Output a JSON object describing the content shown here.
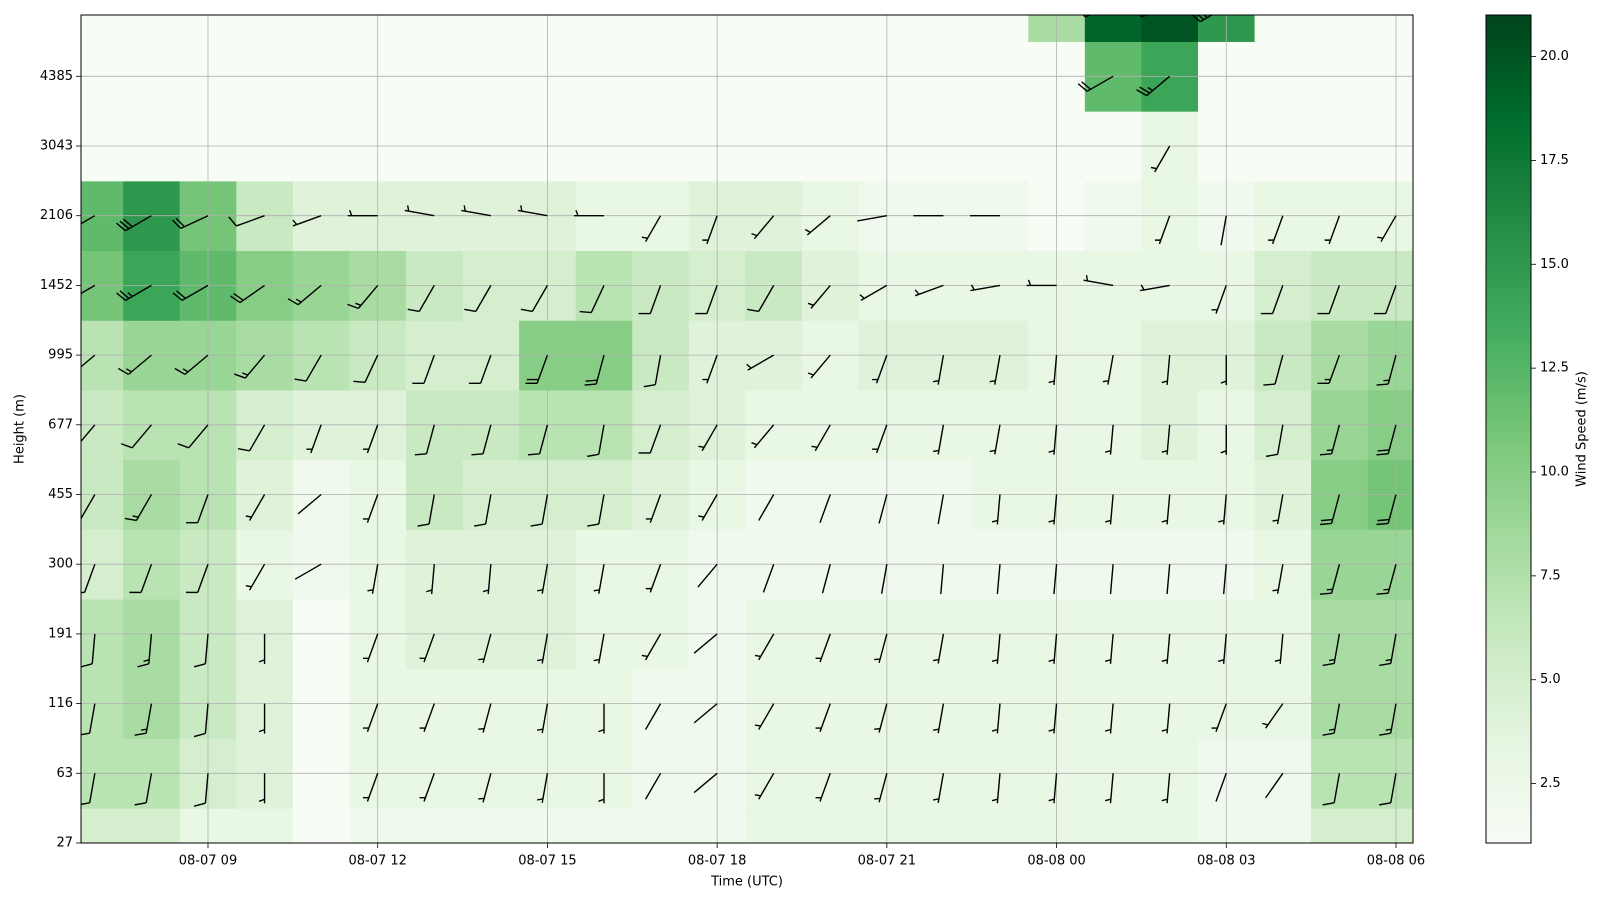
{
  "chart_data": {
    "type": "heatmap_barbs",
    "xlabel": "Time (UTC)",
    "ylabel": "Height (m)",
    "grid": true,
    "x": [
      null,
      null,
      "08-07 09",
      null,
      null,
      "08-07 12",
      null,
      null,
      "08-07 15",
      null,
      null,
      "08-07 18",
      null,
      null,
      "08-07 21",
      null,
      null,
      "08-08 00",
      null,
      null,
      "08-08 03",
      null,
      null,
      "08-08 06"
    ],
    "y": [
      "27",
      "63",
      "116",
      "191",
      "300",
      "455",
      "677",
      "995",
      "1452",
      "2106",
      "3043",
      "4385",
      null
    ],
    "values": [
      [
        5,
        5,
        3,
        3,
        1,
        2,
        2,
        2,
        2,
        2,
        2,
        2,
        3,
        3,
        3,
        3,
        3,
        3,
        3,
        3,
        2,
        2,
        5,
        5
      ],
      [
        7,
        7,
        5,
        4,
        1,
        3,
        3,
        3,
        3,
        3,
        2,
        2,
        3,
        3,
        3,
        3,
        3,
        3,
        3,
        3,
        2,
        2,
        7,
        7
      ],
      [
        7,
        8,
        6,
        4,
        1,
        3,
        3,
        3,
        3,
        3,
        2,
        2,
        3,
        3,
        3,
        3,
        3,
        3,
        3,
        3,
        3,
        3,
        8,
        8
      ],
      [
        7,
        8,
        6,
        4,
        1,
        3,
        4,
        4,
        4,
        3,
        3,
        2,
        3,
        3,
        3,
        3,
        3,
        3,
        3,
        3,
        3,
        3,
        8,
        8
      ],
      [
        5,
        7,
        6,
        3,
        2,
        3,
        4,
        4,
        4,
        3,
        3,
        2,
        2,
        2,
        2,
        2,
        2,
        2,
        2,
        2,
        2,
        3,
        9,
        9
      ],
      [
        6,
        8,
        7,
        4,
        2,
        3,
        6,
        5,
        5,
        5,
        4,
        3,
        2,
        2,
        2,
        2,
        3,
        3,
        3,
        3,
        3,
        4,
        10,
        11
      ],
      [
        6,
        7,
        7,
        5,
        4,
        4,
        6,
        6,
        7,
        7,
        5,
        4,
        3,
        3,
        3,
        3,
        3,
        3,
        3,
        4,
        3,
        5,
        9,
        10
      ],
      [
        7,
        9,
        9,
        8,
        7,
        6,
        5,
        5,
        10,
        10,
        6,
        4,
        4,
        3,
        4,
        4,
        4,
        3,
        3,
        4,
        4,
        6,
        8,
        9
      ],
      [
        11,
        14,
        12,
        10,
        9,
        8,
        6,
        5,
        5,
        7,
        6,
        5,
        6,
        4,
        3,
        3,
        3,
        3,
        3,
        3,
        3,
        5,
        6,
        6
      ],
      [
        12,
        15,
        11,
        6,
        4,
        4,
        4,
        4,
        4,
        3,
        3,
        4,
        4,
        3,
        2,
        2,
        2,
        1,
        2,
        3,
        2,
        3,
        3,
        3
      ],
      [
        1,
        1,
        1,
        1,
        1,
        1,
        1,
        1,
        1,
        1,
        1,
        1,
        1,
        1,
        1,
        1,
        1,
        1,
        1,
        3,
        1,
        1,
        1,
        1
      ],
      [
        1,
        1,
        1,
        1,
        1,
        1,
        1,
        1,
        1,
        1,
        1,
        1,
        1,
        1,
        1,
        1,
        1,
        1,
        12,
        14,
        1,
        1,
        1,
        1
      ],
      [
        1,
        1,
        1,
        1,
        1,
        1,
        1,
        1,
        1,
        1,
        1,
        1,
        1,
        1,
        1,
        1,
        1,
        8,
        19,
        20,
        15,
        1,
        1,
        1
      ]
    ],
    "directions": [
      [
        190,
        190,
        185,
        180,
        null,
        200,
        200,
        195,
        190,
        180,
        210,
        230,
        210,
        200,
        195,
        190,
        185,
        185,
        185,
        185,
        200,
        215,
        190,
        190
      ],
      [
        190,
        190,
        185,
        180,
        null,
        200,
        200,
        195,
        190,
        180,
        210,
        230,
        210,
        200,
        195,
        190,
        185,
        185,
        185,
        185,
        200,
        215,
        190,
        190
      ],
      [
        190,
        190,
        185,
        180,
        null,
        200,
        200,
        195,
        190,
        180,
        210,
        230,
        210,
        200,
        195,
        190,
        185,
        185,
        185,
        185,
        200,
        215,
        190,
        190
      ],
      [
        185,
        185,
        185,
        180,
        null,
        200,
        200,
        195,
        190,
        190,
        210,
        230,
        210,
        200,
        195,
        190,
        185,
        185,
        185,
        185,
        185,
        185,
        190,
        190
      ],
      [
        200,
        200,
        200,
        210,
        240,
        190,
        185,
        185,
        190,
        190,
        200,
        220,
        200,
        195,
        190,
        185,
        185,
        185,
        185,
        185,
        185,
        190,
        195,
        195
      ],
      [
        210,
        210,
        200,
        210,
        230,
        200,
        190,
        190,
        190,
        190,
        200,
        210,
        210,
        200,
        195,
        190,
        185,
        185,
        185,
        185,
        185,
        190,
        195,
        195
      ],
      [
        220,
        220,
        220,
        210,
        200,
        200,
        195,
        195,
        195,
        190,
        200,
        210,
        220,
        210,
        200,
        190,
        190,
        185,
        185,
        185,
        180,
        190,
        195,
        195
      ],
      [
        230,
        230,
        230,
        220,
        210,
        205,
        200,
        200,
        200,
        195,
        190,
        200,
        240,
        220,
        200,
        190,
        190,
        185,
        190,
        185,
        180,
        195,
        200,
        195
      ],
      [
        240,
        240,
        240,
        235,
        230,
        220,
        210,
        210,
        210,
        205,
        200,
        200,
        210,
        220,
        240,
        250,
        260,
        270,
        280,
        260,
        200,
        200,
        200,
        200
      ],
      [
        240,
        240,
        245,
        250,
        250,
        270,
        280,
        280,
        280,
        270,
        210,
        200,
        220,
        230,
        260,
        270,
        270,
        null,
        null,
        200,
        190,
        200,
        200,
        210
      ],
      [
        null,
        null,
        null,
        null,
        null,
        null,
        null,
        null,
        null,
        null,
        null,
        null,
        null,
        null,
        null,
        null,
        null,
        null,
        null,
        210,
        null,
        null,
        null,
        null
      ],
      [
        null,
        null,
        null,
        null,
        null,
        null,
        null,
        null,
        null,
        null,
        null,
        null,
        null,
        null,
        null,
        null,
        null,
        null,
        240,
        230,
        null,
        null,
        null,
        null
      ],
      [
        null,
        null,
        null,
        null,
        null,
        null,
        null,
        null,
        null,
        null,
        null,
        null,
        null,
        null,
        null,
        null,
        null,
        260,
        250,
        250,
        240,
        null,
        null,
        null
      ]
    ],
    "colormap": [
      "#f7fcf5",
      "#e5f5e0",
      "#c7e9c0",
      "#a1d99b",
      "#74c476",
      "#41ab5d",
      "#238b45",
      "#006d2c",
      "#00441b"
    ],
    "barb_color": "#000000",
    "colorbar": {
      "label": "Wind Speed (m/s)",
      "lim": [
        1.07,
        21.0
      ],
      "ticks": [
        2.5,
        {
          "value": 5,
          "label": "5.0"
        },
        7.5,
        {
          "value": 10,
          "label": "10.0"
        },
        12.5,
        {
          "value": 15,
          "label": "15.0"
        },
        17.5,
        {
          "value": 20,
          "label": "20.0"
        }
      ]
    }
  }
}
